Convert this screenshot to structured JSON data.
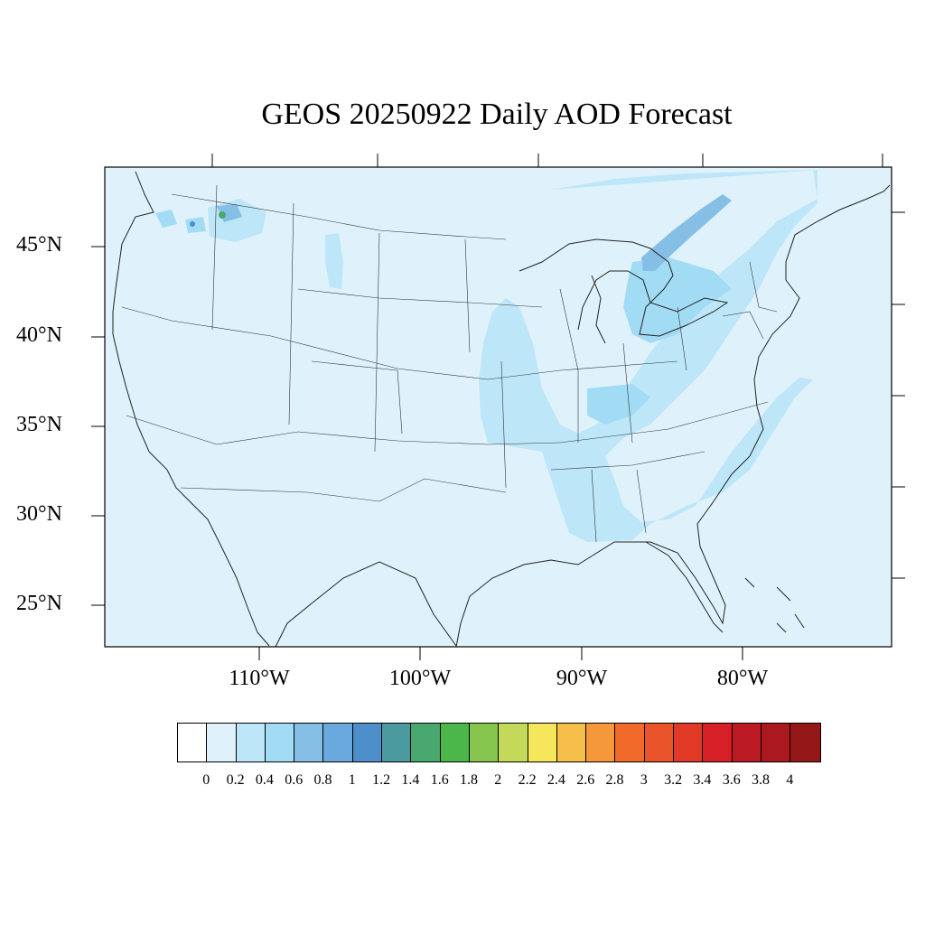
{
  "title": "GEOS 20250922 Daily AOD Forecast",
  "lat_labels": [
    "45°N",
    "40°N",
    "35°N",
    "30°N",
    "25°N"
  ],
  "lon_labels": [
    "110°W",
    "100°W",
    "90°W",
    "80°W"
  ],
  "colorbar": {
    "colors": [
      "#ffffff",
      "#dff2fb",
      "#bde6f8",
      "#a2dbf4",
      "#85bfe6",
      "#69a9dd",
      "#4c8fcb",
      "#4a9aa0",
      "#48a870",
      "#4bb649",
      "#87c64e",
      "#c4d85a",
      "#f6e65c",
      "#f6bf4a",
      "#f5973b",
      "#f26a2a",
      "#e9542a",
      "#e03a27",
      "#d61f27",
      "#bd1b24",
      "#a9191f",
      "#941718"
    ],
    "ticks": [
      "0",
      "0.2",
      "0.4",
      "0.6",
      "0.8",
      "1",
      "1.2",
      "1.4",
      "1.6",
      "1.8",
      "2",
      "2.2",
      "2.4",
      "2.6",
      "2.8",
      "3",
      "3.2",
      "3.4",
      "3.6",
      "3.8",
      "4"
    ]
  },
  "map_colors": {
    "background": "#dff2fb",
    "light_plume": "#bde6f8",
    "medium_plume": "#a2dbf4",
    "dense_plume": "#85bfe6",
    "hotspot": "#48a870"
  }
}
